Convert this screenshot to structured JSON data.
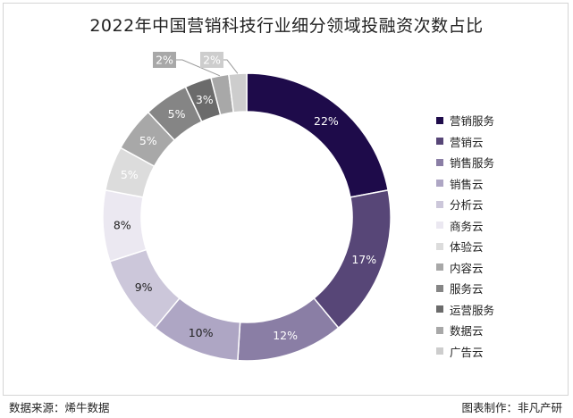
{
  "chart_data": {
    "type": "pie",
    "title": "2022年中国营销科技行业细分领域投融资次数占比",
    "categories": [
      "营销服务",
      "营销云",
      "销售服务",
      "销售云",
      "分析云",
      "商务云",
      "体验云",
      "内容云",
      "服务云",
      "运营服务",
      "数据云",
      "广告云"
    ],
    "values": [
      22,
      17,
      12,
      10,
      9,
      8,
      5,
      5,
      5,
      3,
      2,
      2
    ],
    "value_labels": [
      "22%",
      "17%",
      "12%",
      "10%",
      "9%",
      "8%",
      "5%",
      "5%",
      "5%",
      "3%",
      "2%",
      "2%"
    ],
    "colors": [
      "#1e0b4a",
      "#574677",
      "#8a7ea5",
      "#aea6c4",
      "#ccc7da",
      "#ebe8f1",
      "#dcdcdc",
      "#a8a8a8",
      "#858585",
      "#6b6b6b",
      "#a8a8a8",
      "#cdcdcd"
    ],
    "label_colors": [
      "#ffffff",
      "#ffffff",
      "#ffffff",
      "#222222",
      "#222222",
      "#222222",
      "#ffffff",
      "#ffffff",
      "#ffffff",
      "#ffffff",
      "#ffffff",
      "#ffffff"
    ],
    "legend_position": "right",
    "style": "donut"
  },
  "footer": {
    "source": "数据来源：烯牛数据",
    "credit": "图表制作：非凡产研"
  }
}
